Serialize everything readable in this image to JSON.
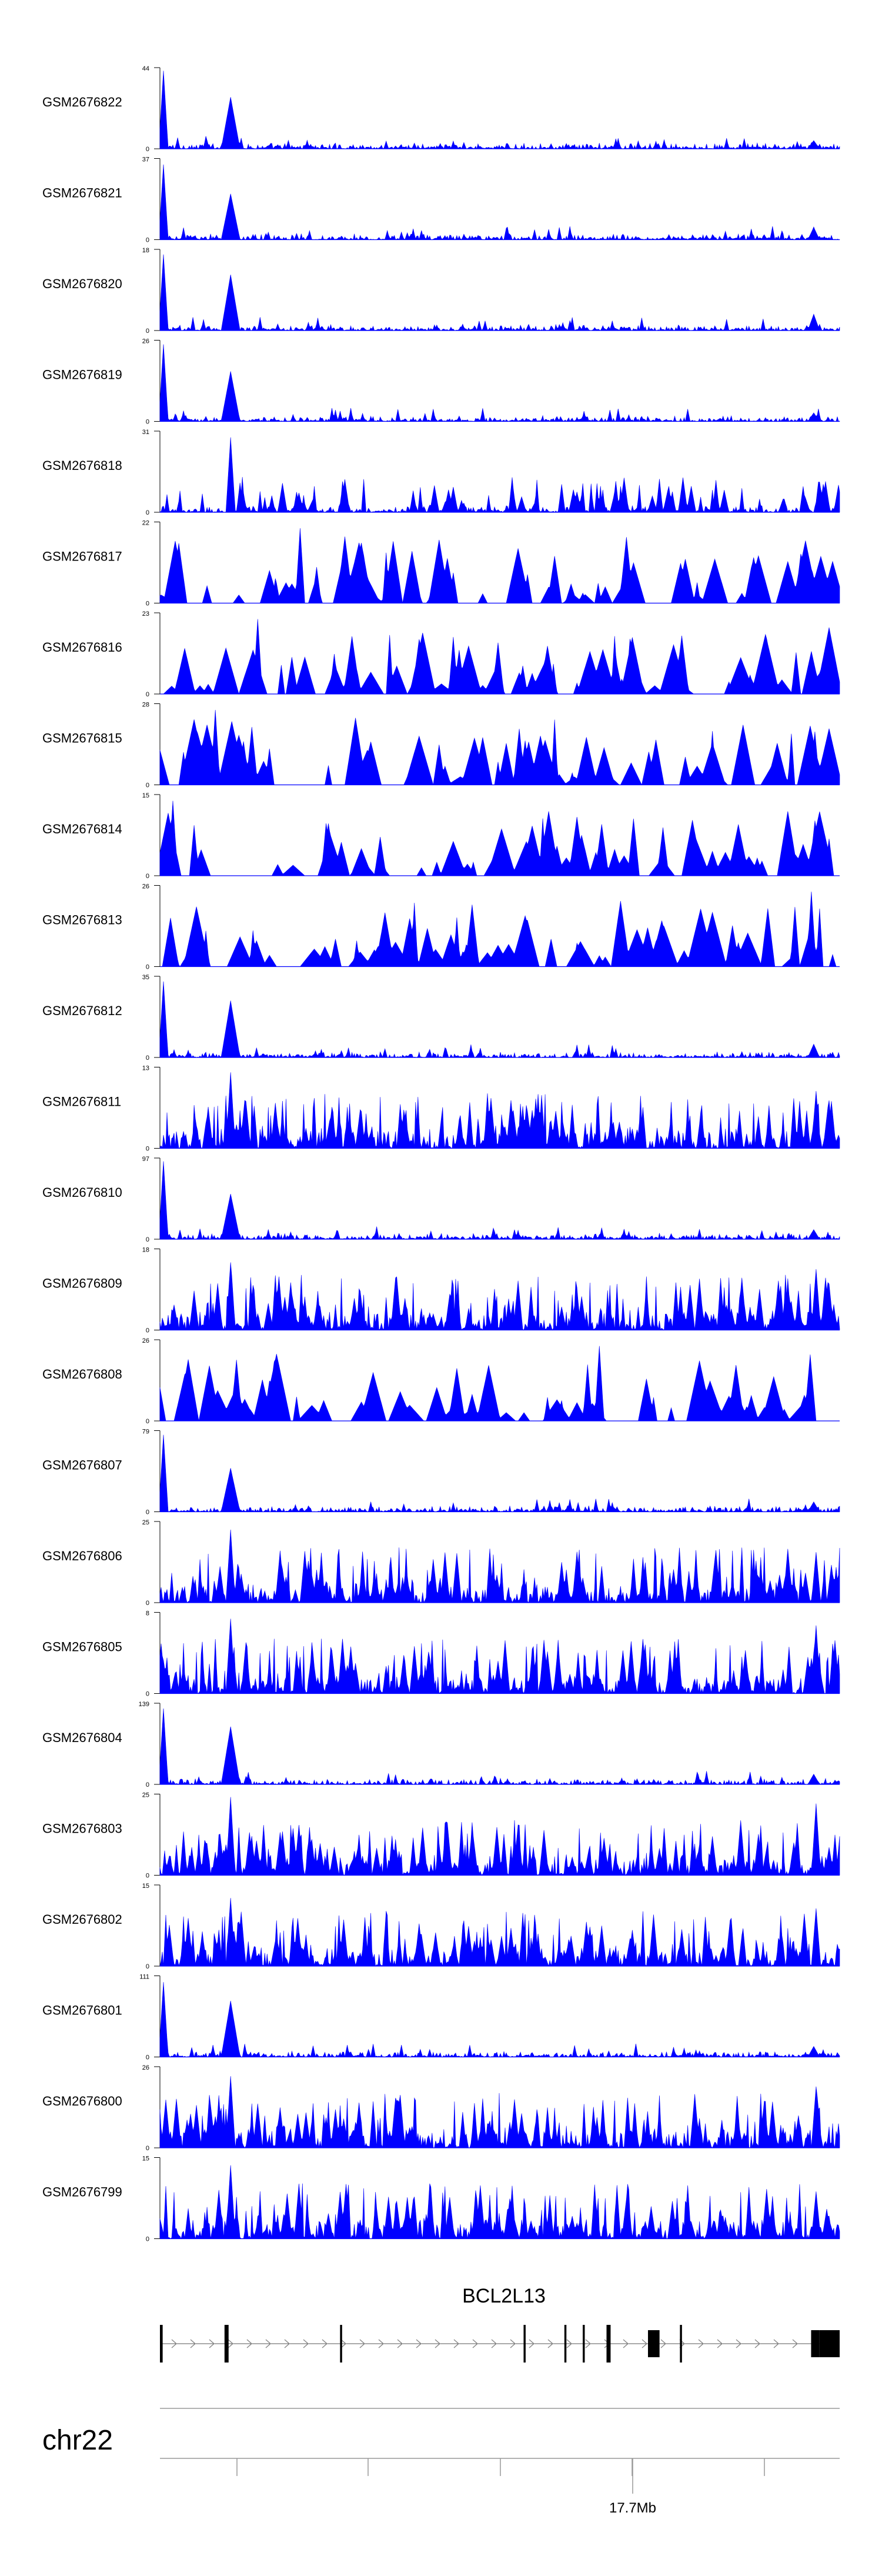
{
  "chart_data": {
    "type": "area",
    "title": "",
    "xlabel": "",
    "ylabel": "",
    "series_color": "#0000ff",
    "series": [
      {
        "name": "GSM2676822",
        "ymax": 44,
        "profile": "promoter"
      },
      {
        "name": "GSM2676821",
        "ymax": 37,
        "profile": "promoter"
      },
      {
        "name": "GSM2676820",
        "ymax": 18,
        "profile": "promoter"
      },
      {
        "name": "GSM2676819",
        "ymax": 26,
        "profile": "promoter"
      },
      {
        "name": "GSM2676818",
        "ymax": 31,
        "profile": "mid"
      },
      {
        "name": "GSM2676817",
        "ymax": 22,
        "profile": "sparse"
      },
      {
        "name": "GSM2676816",
        "ymax": 23,
        "profile": "sparse"
      },
      {
        "name": "GSM2676815",
        "ymax": 28,
        "profile": "sparse"
      },
      {
        "name": "GSM2676814",
        "ymax": 15,
        "profile": "sparse"
      },
      {
        "name": "GSM2676813",
        "ymax": 26,
        "profile": "sparse"
      },
      {
        "name": "GSM2676812",
        "ymax": 35,
        "profile": "promoter"
      },
      {
        "name": "GSM2676811",
        "ymax": 13,
        "profile": "dense"
      },
      {
        "name": "GSM2676810",
        "ymax": 97,
        "profile": "promoter"
      },
      {
        "name": "GSM2676809",
        "ymax": 18,
        "profile": "dense"
      },
      {
        "name": "GSM2676808",
        "ymax": 26,
        "profile": "sparse"
      },
      {
        "name": "GSM2676807",
        "ymax": 79,
        "profile": "promoter"
      },
      {
        "name": "GSM2676806",
        "ymax": 25,
        "profile": "dense"
      },
      {
        "name": "GSM2676805",
        "ymax": 8,
        "profile": "dense"
      },
      {
        "name": "GSM2676804",
        "ymax": 139,
        "profile": "promoter"
      },
      {
        "name": "GSM2676803",
        "ymax": 25,
        "profile": "dense"
      },
      {
        "name": "GSM2676802",
        "ymax": 15,
        "profile": "dense"
      },
      {
        "name": "GSM2676801",
        "ymax": 111,
        "profile": "promoter"
      },
      {
        "name": "GSM2676800",
        "ymax": 26,
        "profile": "dense"
      },
      {
        "name": "GSM2676799",
        "ymax": 15,
        "profile": "dense"
      }
    ],
    "y_min_label": "0",
    "gene": {
      "name": "BCL2L13",
      "strand": "+",
      "exons": [
        {
          "start": 0.0,
          "end": 0.004
        },
        {
          "start": 0.095,
          "end": 0.101
        },
        {
          "start": 0.265,
          "end": 0.268
        },
        {
          "start": 0.535,
          "end": 0.538
        },
        {
          "start": 0.595,
          "end": 0.598
        },
        {
          "start": 0.622,
          "end": 0.625
        },
        {
          "start": 0.657,
          "end": 0.663
        },
        {
          "start": 0.718,
          "end": 0.735
        },
        {
          "start": 0.765,
          "end": 0.768
        },
        {
          "start": 0.958,
          "end": 0.97
        },
        {
          "start": 0.97,
          "end": 1.0
        }
      ]
    },
    "chromosome": "chr22",
    "x_tick_label": "17.7Mb"
  }
}
